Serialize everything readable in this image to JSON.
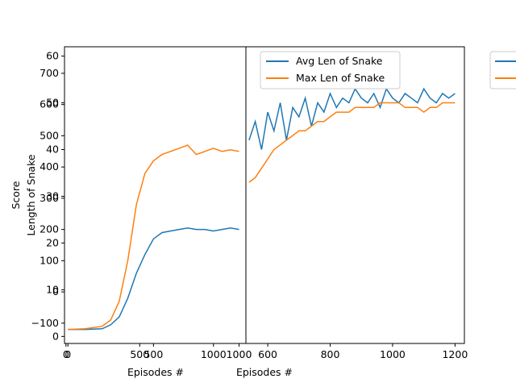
{
  "chart_data": [
    {
      "type": "line",
      "xlabel": "Episodes #",
      "ylabel": "Score",
      "xlim": [
        -20,
        1040
      ],
      "ylim": [
        -165,
        785
      ],
      "xticks": [
        0,
        500,
        1000
      ],
      "yticks": [
        -100,
        0,
        100,
        200,
        300,
        400,
        500,
        600,
        700
      ],
      "series": [
        {
          "color": "#1f77b4",
          "x": [
            0,
            100,
            200,
            250,
            300,
            350,
            400,
            450,
            500,
            550,
            600,
            650,
            700,
            750,
            800,
            850,
            900,
            950,
            1000
          ],
          "y": [
            -120,
            -120,
            -118,
            -105,
            -80,
            -20,
            60,
            120,
            170,
            190,
            195,
            200,
            205,
            200,
            200,
            195,
            200,
            205,
            200
          ]
        },
        {
          "color": "#ff7f0e",
          "x": [
            0,
            100,
            200,
            250,
            300,
            350,
            400,
            450,
            500,
            550,
            600,
            650,
            700,
            750,
            800,
            850,
            900,
            950,
            1000
          ],
          "y": [
            -120,
            -118,
            -110,
            -90,
            -30,
            100,
            280,
            380,
            420,
            440,
            450,
            460,
            470,
            440,
            450,
            460,
            450,
            455,
            450
          ]
        }
      ]
    },
    {
      "type": "line",
      "xlabel": "Episodes #",
      "ylabel": "Length of Snake",
      "xlim": [
        -10,
        1220
      ],
      "ylim": [
        -1.5,
        62
      ],
      "xticks": [
        0,
        500,
        1000
      ],
      "yticks": [
        0,
        10,
        20,
        30,
        40,
        50,
        60
      ],
      "series": [
        {
          "color": "#1f77b4",
          "values": []
        },
        {
          "color": "#ff7f0e",
          "values": []
        }
      ]
    },
    {
      "type": "line",
      "xlabel": "",
      "ylabel": "",
      "xlim": [
        530,
        1230
      ],
      "ylim": [
        -1.5,
        62
      ],
      "xticks": [
        600,
        800,
        1000,
        1200
      ],
      "yticks": [],
      "legend": "top-left",
      "series": [
        {
          "name": "Avg Len of Snake",
          "color": "#1f77b4",
          "x": [
            540,
            560,
            580,
            600,
            620,
            640,
            660,
            680,
            700,
            720,
            740,
            760,
            780,
            800,
            820,
            840,
            860,
            880,
            900,
            920,
            940,
            960,
            980,
            1000,
            1020,
            1040,
            1060,
            1080,
            1100,
            1120,
            1140,
            1160,
            1180,
            1200
          ],
          "y": [
            42,
            46,
            40,
            48,
            44,
            50,
            42,
            49,
            47,
            51,
            45,
            50,
            48,
            52,
            49,
            51,
            50,
            53,
            51,
            50,
            52,
            49,
            53,
            51,
            50,
            52,
            51,
            50,
            53,
            51,
            50,
            52,
            51,
            52
          ]
        },
        {
          "name": "Max Len of Snake",
          "color": "#ff7f0e",
          "x": [
            540,
            560,
            580,
            600,
            620,
            640,
            660,
            680,
            700,
            720,
            740,
            760,
            780,
            800,
            820,
            840,
            860,
            880,
            900,
            920,
            940,
            960,
            980,
            1000,
            1020,
            1040,
            1060,
            1080,
            1100,
            1120,
            1140,
            1160,
            1180,
            1200
          ],
          "y": [
            33,
            34,
            36,
            38,
            40,
            41,
            42,
            43,
            44,
            44,
            45,
            46,
            46,
            47,
            48,
            48,
            48,
            49,
            49,
            49,
            49,
            50,
            50,
            50,
            50,
            49,
            49,
            49,
            48,
            49,
            49,
            50,
            50,
            50
          ]
        }
      ]
    }
  ],
  "legend_right_partial": {
    "series_colors": [
      "#1f77b4",
      "#ff7f0e"
    ]
  }
}
